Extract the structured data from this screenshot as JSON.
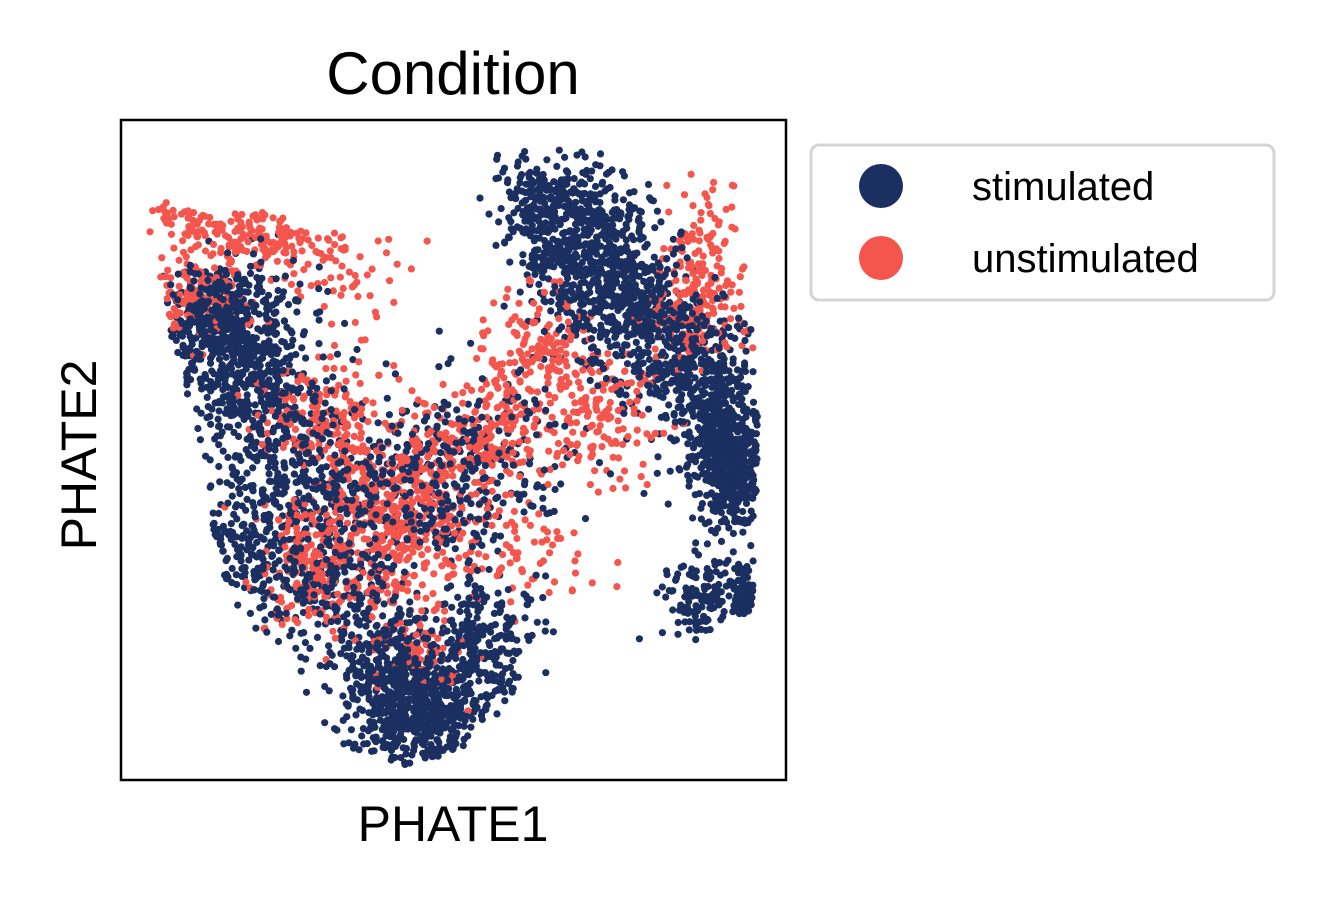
{
  "chart_data": {
    "type": "scatter",
    "title": "Condition",
    "xlabel": "PHATE1",
    "ylabel": "PHATE2",
    "xlim": [
      0,
      1
    ],
    "ylim": [
      0,
      1
    ],
    "xticks": [],
    "yticks": [],
    "grid": false,
    "legend_position": "outside-right-top",
    "series": [
      {
        "name": "stimulated",
        "color": "#1b2f61",
        "approx_points": 2600
      },
      {
        "name": "unstimulated",
        "color": "#f4564d",
        "approx_points": 2000
      }
    ]
  }
}
